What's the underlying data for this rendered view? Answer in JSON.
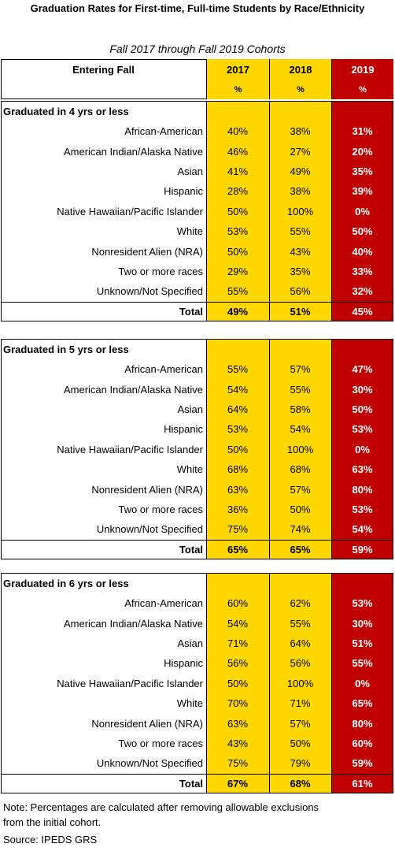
{
  "title": "Graduation Rates for First-time, Full-time Students by Race/Ethnicity",
  "subtitle": "Fall 2017 through  Fall 2019 Cohorts",
  "table": {
    "header": {
      "label": "Entering Fall",
      "years": [
        "2017",
        "2018",
        "2019"
      ],
      "units": [
        "%",
        "%",
        "%"
      ]
    },
    "sections": [
      {
        "heading": "Graduated in 4 yrs or less",
        "rows": [
          [
            "African-American",
            "40%",
            "38%",
            "31%"
          ],
          [
            "American Indian/Alaska Native",
            "46%",
            "27%",
            "20%"
          ],
          [
            "Asian",
            "41%",
            "49%",
            "35%"
          ],
          [
            "Hispanic",
            "28%",
            "38%",
            "39%"
          ],
          [
            "Native Hawaiian/Pacific Islander",
            "50%",
            "100%",
            "0%"
          ],
          [
            "White",
            "53%",
            "55%",
            "50%"
          ],
          [
            "Nonresident Alien (NRA)",
            "50%",
            "43%",
            "40%"
          ],
          [
            "Two or more races",
            "29%",
            "35%",
            "33%"
          ],
          [
            "Unknown/Not Specified",
            "55%",
            "56%",
            "32%"
          ],
          [
            "Total",
            "49%",
            "51%",
            "45%"
          ]
        ]
      },
      {
        "heading": "Graduated in 5 yrs or less",
        "rows": [
          [
            "African-American",
            "55%",
            "57%",
            "47%"
          ],
          [
            "American Indian/Alaska Native",
            "54%",
            "55%",
            "30%"
          ],
          [
            "Asian",
            "64%",
            "58%",
            "50%"
          ],
          [
            "Hispanic",
            "53%",
            "54%",
            "53%"
          ],
          [
            "Native Hawaiian/Pacific Islander",
            "50%",
            "100%",
            "0%"
          ],
          [
            "White",
            "68%",
            "68%",
            "63%"
          ],
          [
            "Nonresident Alien (NRA)",
            "63%",
            "57%",
            "80%"
          ],
          [
            "Two or more races",
            "36%",
            "50%",
            "53%"
          ],
          [
            "Unknown/Not Specified",
            "75%",
            "74%",
            "54%"
          ],
          [
            "Total",
            "65%",
            "65%",
            "59%"
          ]
        ]
      },
      {
        "heading": "Graduated in 6 yrs or less",
        "rows": [
          [
            "African-American",
            "60%",
            "62%",
            "53%"
          ],
          [
            "American Indian/Alaska Native",
            "54%",
            "55%",
            "30%"
          ],
          [
            "Asian",
            "71%",
            "64%",
            "51%"
          ],
          [
            "Hispanic",
            "56%",
            "56%",
            "55%"
          ],
          [
            "Native Hawaiian/Pacific Islander",
            "50%",
            "100%",
            "0%"
          ],
          [
            "White",
            "70%",
            "71%",
            "65%"
          ],
          [
            "Nonresident Alien (NRA)",
            "63%",
            "57%",
            "80%"
          ],
          [
            "Two or more races",
            "43%",
            "50%",
            "60%"
          ],
          [
            "Unknown/Not Specified",
            "75%",
            "79%",
            "59%"
          ],
          [
            "Total",
            "67%",
            "68%",
            "61%"
          ]
        ]
      }
    ]
  },
  "notes": [
    "Note:  Percentages are calculated after removing allowable exclusions from the initial cohort.",
    "Source: IPEDS GRS"
  ]
}
